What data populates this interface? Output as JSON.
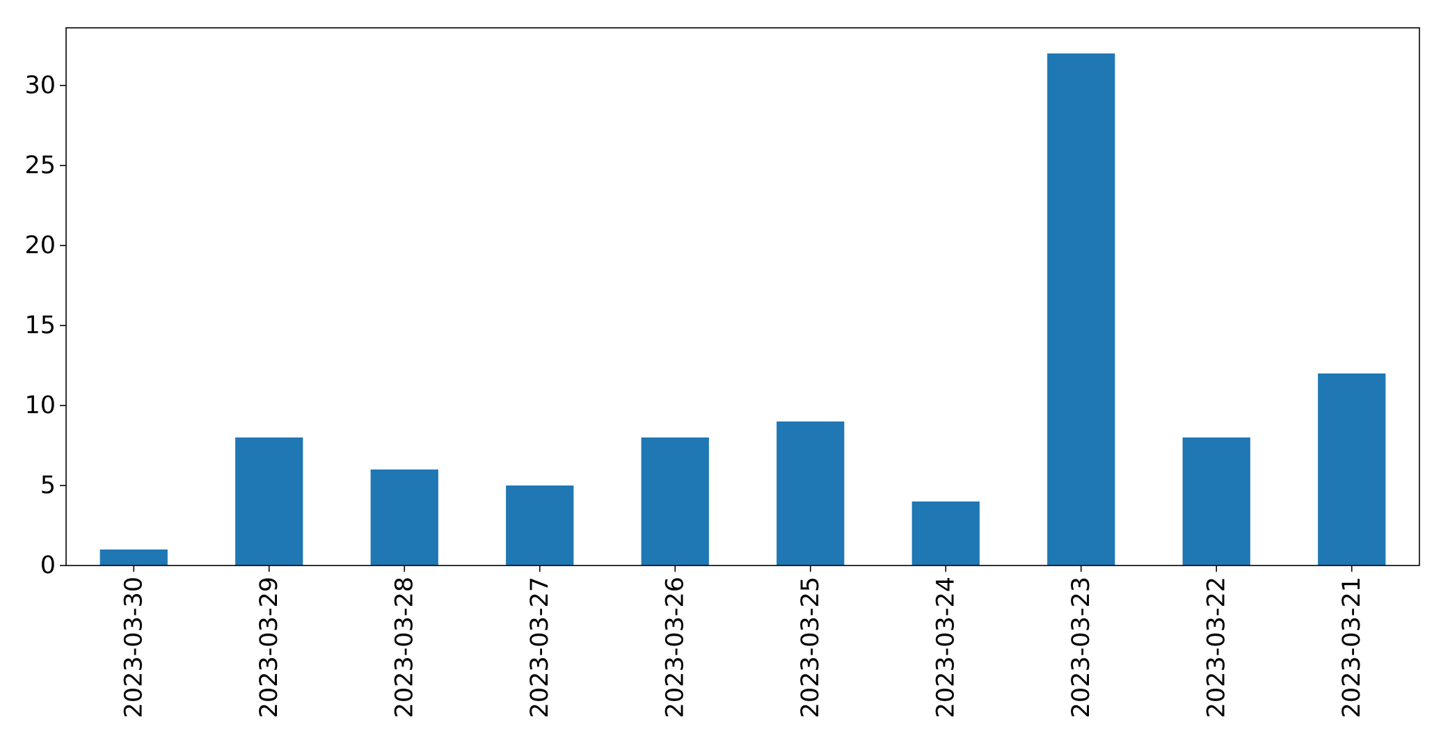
{
  "chart_data": {
    "type": "bar",
    "title": "",
    "xlabel": "",
    "ylabel": "",
    "categories": [
      "2023-03-30",
      "2023-03-29",
      "2023-03-28",
      "2023-03-27",
      "2023-03-26",
      "2023-03-25",
      "2023-03-24",
      "2023-03-23",
      "2023-03-22",
      "2023-03-21"
    ],
    "values": [
      1,
      8,
      6,
      5,
      8,
      9,
      4,
      32,
      8,
      12
    ],
    "ylim": [
      0,
      33.6
    ],
    "yticks": [
      0,
      5,
      10,
      15,
      20,
      25,
      30
    ],
    "x_tick_rotation": "vertical",
    "grid": false,
    "legend": "none",
    "bar_color": "#1f77b4",
    "axis_color": "#000000"
  }
}
